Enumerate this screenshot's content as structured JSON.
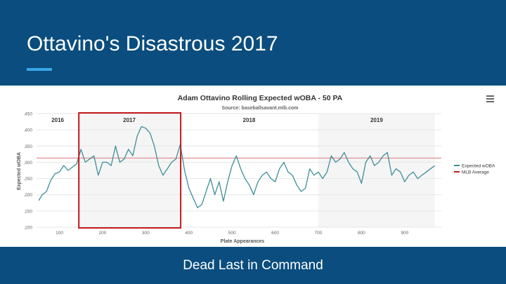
{
  "slide": {
    "title": "Ottavino's Disastrous 2017",
    "subtitle": "Dead Last in Command"
  },
  "colors": {
    "header_bg": "#0a4d7e",
    "accent": "#3ba6e6",
    "series_line": "#3d8f98",
    "average_line": "#e0989a",
    "highlight_box": "#c0191c",
    "shaded_season": "#f5f5f5"
  },
  "menu_icon": "hamburger-menu-icon",
  "chart_data": {
    "type": "line",
    "title": "Adam Ottavino Rolling Expected wOBA - 50 PA",
    "subtitle": "Source: baseballsavant.mlb.com",
    "xlabel": "Plate Appearances",
    "ylabel": "Expected wOBA",
    "xlim": [
      47,
      985
    ],
    "ylim": [
      0.1,
      0.45
    ],
    "xticks": [
      100,
      200,
      300,
      400,
      500,
      600,
      700,
      800,
      900
    ],
    "yticks": [
      ".100",
      ".150",
      ".200",
      ".250",
      ".300",
      ".350",
      ".400",
      ".450"
    ],
    "legend_position": "right",
    "mlb_average": 0.313,
    "seasons": [
      {
        "label": "2016",
        "x_start": 47,
        "x_end": 145,
        "shaded": false
      },
      {
        "label": "2017",
        "x_start": 145,
        "x_end": 379,
        "shaded": true
      },
      {
        "label": "2018",
        "x_start": 379,
        "x_end": 700,
        "shaded": false
      },
      {
        "label": "2019",
        "x_start": 700,
        "x_end": 970,
        "shaded": true
      }
    ],
    "highlight": {
      "x_start": 145,
      "x_end": 381
    },
    "series": [
      {
        "name": "Expected wOBA",
        "x": [
          52,
          60,
          70,
          80,
          90,
          100,
          110,
          120,
          130,
          140,
          150,
          160,
          170,
          180,
          190,
          200,
          210,
          220,
          230,
          240,
          250,
          260,
          270,
          280,
          290,
          300,
          310,
          320,
          330,
          340,
          350,
          360,
          370,
          380,
          390,
          400,
          410,
          420,
          430,
          440,
          450,
          460,
          470,
          480,
          490,
          500,
          510,
          520,
          530,
          540,
          550,
          560,
          570,
          580,
          590,
          600,
          610,
          620,
          630,
          640,
          650,
          660,
          670,
          680,
          690,
          700,
          710,
          720,
          730,
          740,
          750,
          760,
          770,
          780,
          790,
          800,
          810,
          820,
          830,
          840,
          850,
          860,
          870,
          880,
          890,
          900,
          910,
          920,
          930,
          940,
          950,
          960,
          970
        ],
        "y": [
          0.182,
          0.2,
          0.21,
          0.245,
          0.265,
          0.27,
          0.29,
          0.275,
          0.285,
          0.295,
          0.34,
          0.3,
          0.31,
          0.32,
          0.26,
          0.3,
          0.3,
          0.29,
          0.35,
          0.3,
          0.31,
          0.34,
          0.32,
          0.38,
          0.41,
          0.405,
          0.39,
          0.35,
          0.29,
          0.26,
          0.28,
          0.3,
          0.31,
          0.355,
          0.275,
          0.22,
          0.19,
          0.16,
          0.17,
          0.21,
          0.25,
          0.2,
          0.24,
          0.18,
          0.24,
          0.29,
          0.32,
          0.28,
          0.25,
          0.23,
          0.2,
          0.24,
          0.26,
          0.27,
          0.25,
          0.24,
          0.28,
          0.3,
          0.27,
          0.26,
          0.23,
          0.21,
          0.22,
          0.28,
          0.26,
          0.27,
          0.25,
          0.27,
          0.32,
          0.3,
          0.31,
          0.33,
          0.3,
          0.28,
          0.27,
          0.235,
          0.3,
          0.32,
          0.29,
          0.3,
          0.32,
          0.33,
          0.26,
          0.28,
          0.27,
          0.24,
          0.26,
          0.27,
          0.25,
          0.26,
          0.27,
          0.28,
          0.29
        ]
      },
      {
        "name": "MLB Average",
        "y_constant": 0.313
      }
    ]
  }
}
